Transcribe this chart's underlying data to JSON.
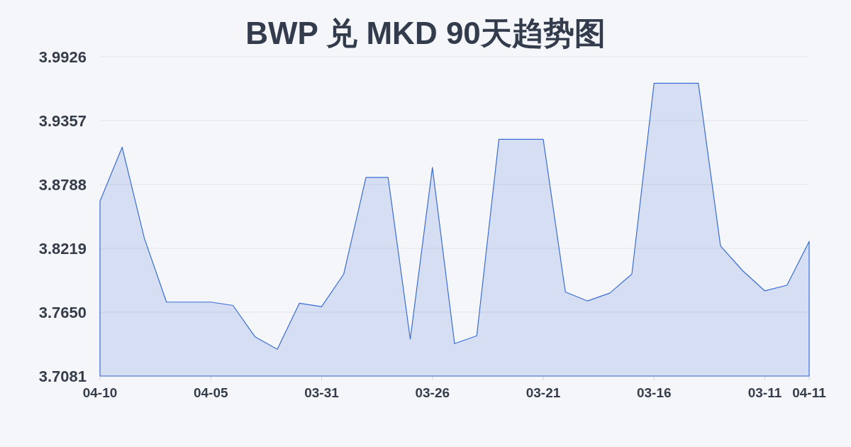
{
  "chart_data": {
    "type": "area",
    "title": "BWP 兑 MKD 90天趋势图",
    "categories": [
      "04-10",
      null,
      null,
      null,
      null,
      "04-05",
      null,
      null,
      null,
      null,
      "03-31",
      null,
      null,
      null,
      null,
      "03-26",
      null,
      null,
      null,
      null,
      "03-21",
      null,
      null,
      null,
      null,
      "03-16",
      null,
      null,
      null,
      null,
      "03-11",
      null,
      "04-11"
    ],
    "series": [
      {
        "color": "#3b6cd3",
        "values": [
          3.864,
          3.912,
          3.831,
          3.774,
          3.774,
          3.774,
          3.771,
          3.743,
          3.732,
          3.773,
          3.77,
          3.799,
          3.885,
          3.885,
          3.741,
          3.894,
          3.737,
          3.744,
          3.919,
          3.919,
          3.919,
          3.783,
          3.775,
          3.782,
          3.799,
          3.969,
          3.969,
          3.969,
          3.824,
          3.802,
          3.784,
          3.789,
          3.828
        ]
      }
    ],
    "ylim": [
      3.7081,
      3.9926
    ],
    "yticks": [
      3.7081,
      {
        "value": 3.765,
        "label": "3.7650"
      },
      3.8219,
      3.8788,
      3.9357,
      3.9926
    ],
    "grid": "y"
  }
}
